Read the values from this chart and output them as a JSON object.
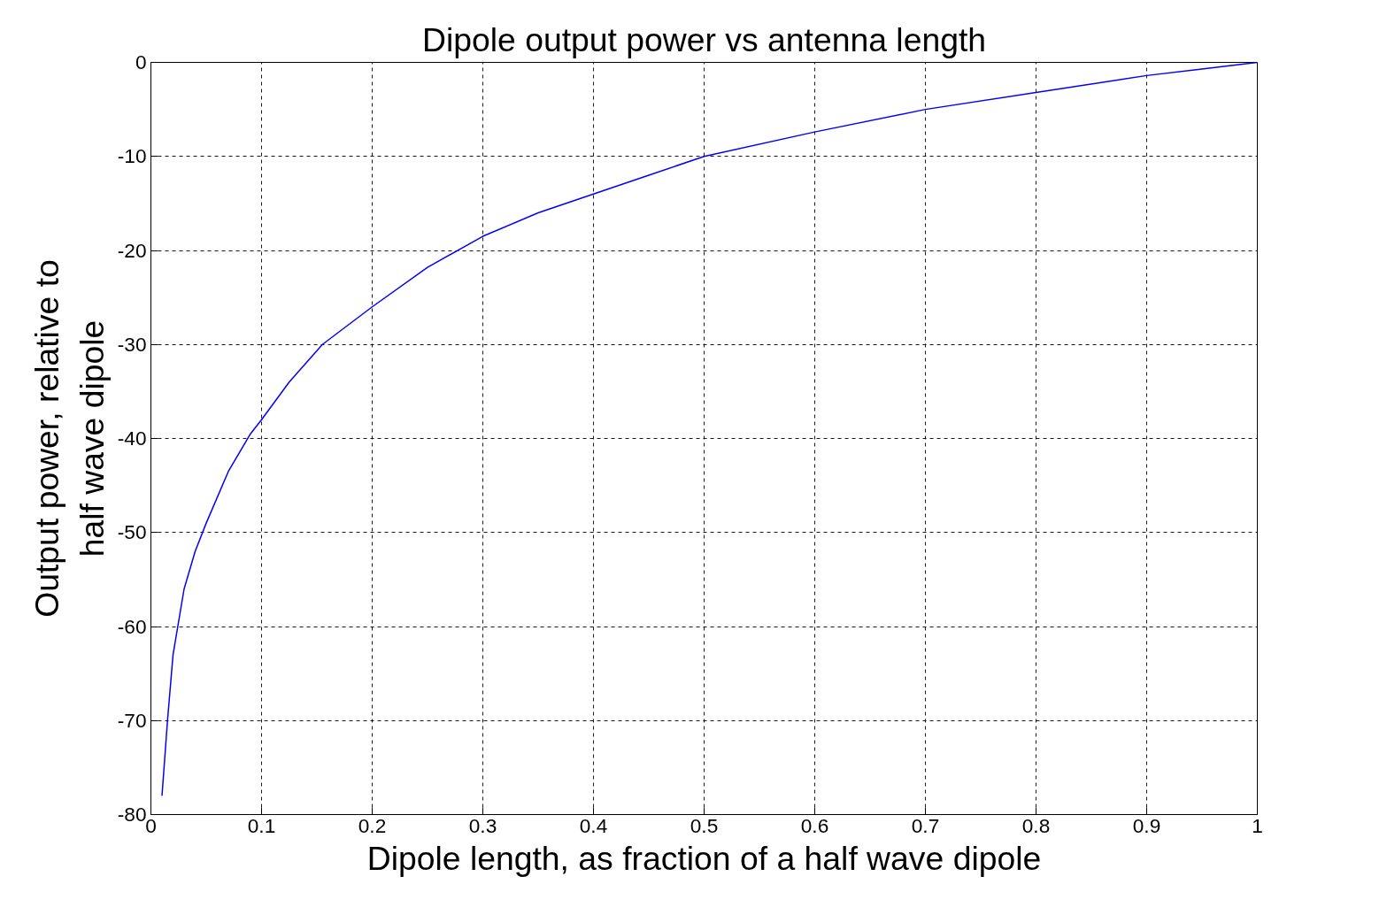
{
  "chart_data": {
    "type": "line",
    "title": "Dipole output power vs antenna length",
    "xlabel": "Dipole length, as fraction of a half wave dipole",
    "ylabel": "Output power, relative to\nhalf wave dipole",
    "x": [
      0.01,
      0.015,
      0.02,
      0.03,
      0.04,
      0.05,
      0.07,
      0.09,
      0.1,
      0.125,
      0.155,
      0.2,
      0.25,
      0.3,
      0.35,
      0.4,
      0.45,
      0.5,
      0.6,
      0.7,
      0.8,
      0.9,
      0.95,
      1
    ],
    "series": [
      {
        "color": "#0000ff",
        "values": [
          -78,
          -70,
          -63,
          -56,
          -52,
          -49,
          -43.5,
          -39.5,
          -38,
          -34,
          -30,
          -26,
          -21.8,
          -18.5,
          -16,
          -14,
          -12,
          -10,
          -7.4,
          -5,
          -3.2,
          -1.4,
          -0.7,
          0
        ]
      }
    ],
    "xlim": [
      0,
      1
    ],
    "ylim": [
      -80,
      0
    ],
    "xticks": [
      0,
      0.1,
      0.2,
      0.3,
      0.4,
      0.5,
      0.6,
      0.7,
      0.8,
      0.9,
      1
    ],
    "yticks": [
      -80,
      -70,
      -60,
      -50,
      -40,
      -30,
      -20,
      -10,
      0
    ],
    "grid": true,
    "line_style": "solid"
  }
}
